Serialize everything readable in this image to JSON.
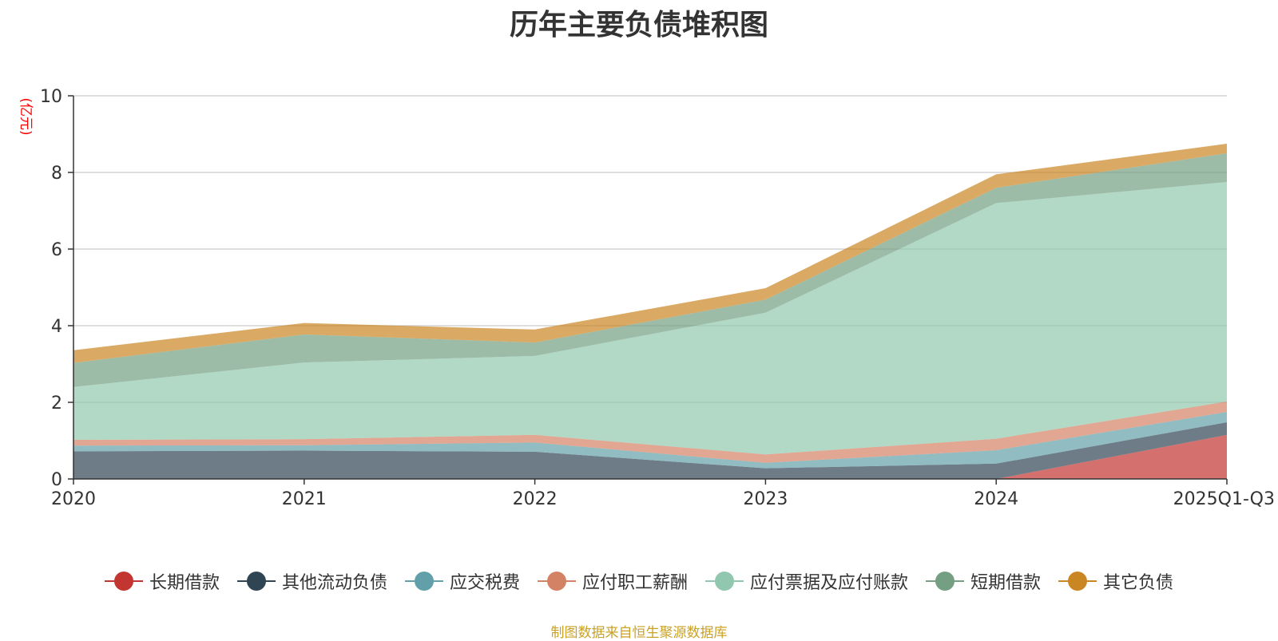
{
  "chart_data": {
    "type": "area",
    "stacked": true,
    "title": "历年主要负债堆积图",
    "ylabel": "(亿元)",
    "xlabel": "",
    "ylim": [
      0,
      10
    ],
    "yticks": [
      0,
      2,
      4,
      6,
      8,
      10
    ],
    "grid": true,
    "legend_position": "bottom",
    "categories": [
      "2020",
      "2021",
      "2022",
      "2023",
      "2024",
      "2025Q1-Q3"
    ],
    "series": [
      {
        "name": "长期借款",
        "color": "#c23531",
        "values": [
          0,
          0,
          0,
          0,
          0,
          1.15
        ]
      },
      {
        "name": "其他流动负债",
        "color": "#2f4554",
        "values": [
          0.72,
          0.74,
          0.71,
          0.28,
          0.4,
          0.33
        ]
      },
      {
        "name": "应交税费",
        "color": "#61a0a8",
        "values": [
          0.15,
          0.14,
          0.24,
          0.14,
          0.35,
          0.27
        ]
      },
      {
        "name": "应付职工薪酬",
        "color": "#d48265",
        "values": [
          0.15,
          0.16,
          0.2,
          0.22,
          0.3,
          0.27
        ]
      },
      {
        "name": "应付票据及应付账款",
        "color": "#91c7ae",
        "values": [
          1.38,
          2.0,
          2.06,
          3.7,
          6.15,
          5.73
        ]
      },
      {
        "name": "短期借款",
        "color": "#749f83",
        "values": [
          0.63,
          0.73,
          0.35,
          0.34,
          0.4,
          0.75
        ]
      },
      {
        "name": "其它负债",
        "color": "#ca8622",
        "values": [
          0.33,
          0.3,
          0.34,
          0.3,
          0.35,
          0.25
        ]
      }
    ]
  },
  "source_note": "制图数据来自恒生聚源数据库"
}
